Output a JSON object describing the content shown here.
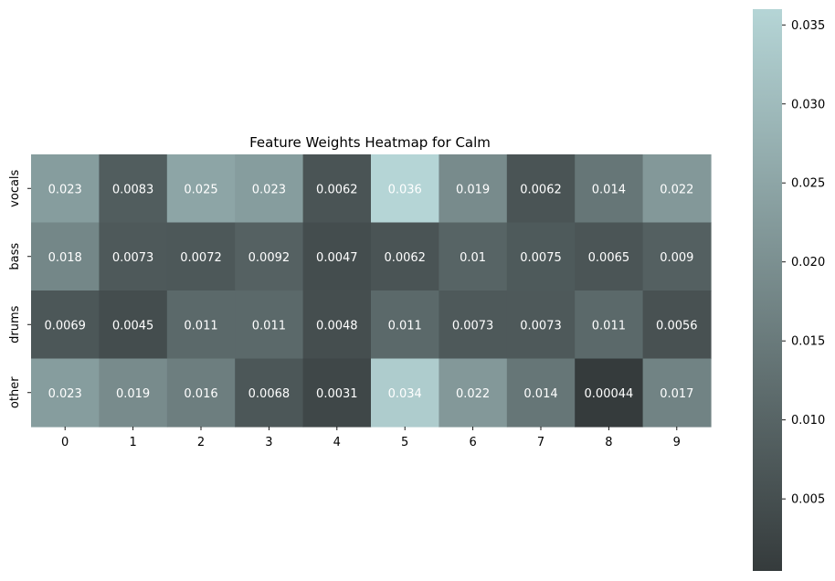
{
  "chart_data": {
    "type": "heatmap",
    "title": "Feature Weights Heatmap for Calm",
    "xlabel": "",
    "ylabel": "",
    "x_categories": [
      "0",
      "1",
      "2",
      "3",
      "4",
      "5",
      "6",
      "7",
      "8",
      "9"
    ],
    "y_categories": [
      "vocals",
      "bass",
      "drums",
      "other"
    ],
    "values": [
      [
        0.023,
        0.0083,
        0.025,
        0.023,
        0.0062,
        0.036,
        0.019,
        0.0062,
        0.014,
        0.022
      ],
      [
        0.018,
        0.0073,
        0.0072,
        0.0092,
        0.0047,
        0.0062,
        0.01,
        0.0075,
        0.0065,
        0.009
      ],
      [
        0.0069,
        0.0045,
        0.011,
        0.011,
        0.0048,
        0.011,
        0.0073,
        0.0073,
        0.011,
        0.0056
      ],
      [
        0.023,
        0.019,
        0.016,
        0.0068,
        0.0031,
        0.034,
        0.022,
        0.014,
        0.00044,
        0.017
      ]
    ],
    "labels": [
      [
        "0.023",
        "0.0083",
        "0.025",
        "0.023",
        "0.0062",
        "0.036",
        "0.019",
        "0.0062",
        "0.014",
        "0.022"
      ],
      [
        "0.018",
        "0.0073",
        "0.0072",
        "0.0092",
        "0.0047",
        "0.0062",
        "0.01",
        "0.0075",
        "0.0065",
        "0.009"
      ],
      [
        "0.0069",
        "0.0045",
        "0.011",
        "0.011",
        "0.0048",
        "0.011",
        "0.0073",
        "0.0073",
        "0.011",
        "0.0056"
      ],
      [
        "0.023",
        "0.019",
        "0.016",
        "0.0068",
        "0.0031",
        "0.034",
        "0.022",
        "0.014",
        "0.00044",
        "0.017"
      ]
    ],
    "colorbar": {
      "vmin": 0.00044,
      "vmax": 0.036,
      "ticks": [
        0.005,
        0.01,
        0.015,
        0.02,
        0.025,
        0.03,
        0.035
      ],
      "tick_labels": [
        "0.005",
        "0.010",
        "0.015",
        "0.020",
        "0.025",
        "0.030",
        "0.035"
      ],
      "color_low": "#353b3c",
      "color_high": "#b5d5d6"
    },
    "annotation_color": "#ffffff",
    "grid": false
  }
}
